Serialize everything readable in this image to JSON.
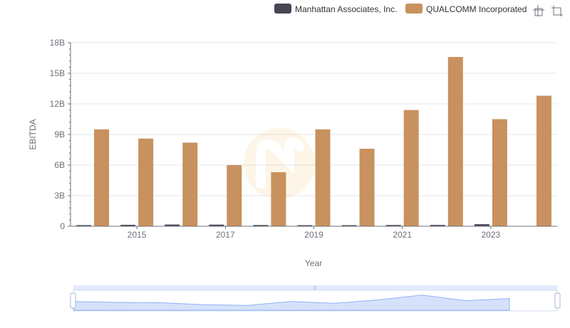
{
  "toolbox": {
    "zoom_icon": "zoom-icon",
    "restore_icon": "restore-icon"
  },
  "colors": {
    "manhattan": "#464655",
    "qualcomm": "#c8915e",
    "grid": "#e0e6f1",
    "slider_fill": "#d6e2fb",
    "slider_line": "#8fb0f7"
  },
  "chart_data": {
    "type": "bar",
    "xlabel": "Year",
    "ylabel": "EBITDA",
    "ylim": [
      0,
      18000000000
    ],
    "y_ticks": [
      {
        "value": 0,
        "label": "0"
      },
      {
        "value": 3000000000,
        "label": "3B"
      },
      {
        "value": 6000000000,
        "label": "6B"
      },
      {
        "value": 9000000000,
        "label": "9B"
      },
      {
        "value": 12000000000,
        "label": "12B"
      },
      {
        "value": 15000000000,
        "label": "15B"
      },
      {
        "value": 18000000000,
        "label": "18B"
      }
    ],
    "categories": [
      "2014",
      "2015",
      "2016",
      "2017",
      "2018",
      "2019",
      "2020",
      "2021",
      "2022",
      "2023",
      "2024"
    ],
    "x_tick_labels": [
      "2015",
      "2017",
      "2019",
      "2021",
      "2023"
    ],
    "legend_position": "top-right",
    "grid": true,
    "series": [
      {
        "name": "Manhattan Associates, Inc.",
        "color": "#464655",
        "values": [
          110000000,
          140000000,
          170000000,
          160000000,
          120000000,
          100000000,
          90000000,
          120000000,
          130000000,
          200000000,
          null
        ]
      },
      {
        "name": "QUALCOMM Incorporated",
        "color": "#c8915e",
        "values": [
          9500000000,
          8600000000,
          8200000000,
          6000000000,
          5300000000,
          9500000000,
          7600000000,
          11400000000,
          16600000000,
          10500000000,
          12800000000
        ]
      }
    ]
  }
}
